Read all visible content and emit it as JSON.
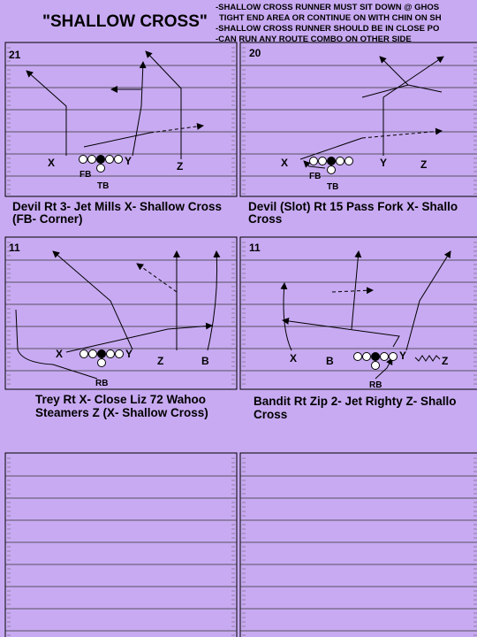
{
  "title": "\"SHALLOW CROSS\"",
  "notes": [
    "-SHALLOW CROSS RUNNER MUST SIT DOWN @ GHOS",
    "TIGHT END AREA OR CONTINUE ON WITH CHIN ON SH",
    "-SHALLOW CROSS RUNNER SHOULD BE IN CLOSE PO",
    "-CAN RUN ANY ROUTE COMBO ON OTHER SIDE"
  ],
  "plays": [
    {
      "number": "21",
      "labels": [
        "X",
        "Y",
        "Z",
        "FB",
        "TB"
      ],
      "caption": [
        "Devil Rt 3- Jet Mills X- Shallow Cross",
        "(FB- Corner)"
      ]
    },
    {
      "number": "20",
      "labels": [
        "X",
        "Y",
        "Z",
        "FB",
        "TB"
      ],
      "caption": [
        "Devil (Slot) Rt 15 Pass Fork X- Shallo",
        "Cross"
      ]
    },
    {
      "number": "11",
      "labels": [
        "X",
        "Y",
        "Z",
        "B",
        "RB"
      ],
      "caption": [
        "Trey Rt X- Close Liz 72 Wahoo",
        "Steamers Z (X- Shallow Cross)"
      ]
    },
    {
      "number": "11",
      "labels": [
        "X",
        "B",
        "Y",
        "Z",
        "RB"
      ],
      "caption": [
        "Bandit Rt Zip 2- Jet Righty Z- Shallo",
        "Cross"
      ]
    }
  ]
}
